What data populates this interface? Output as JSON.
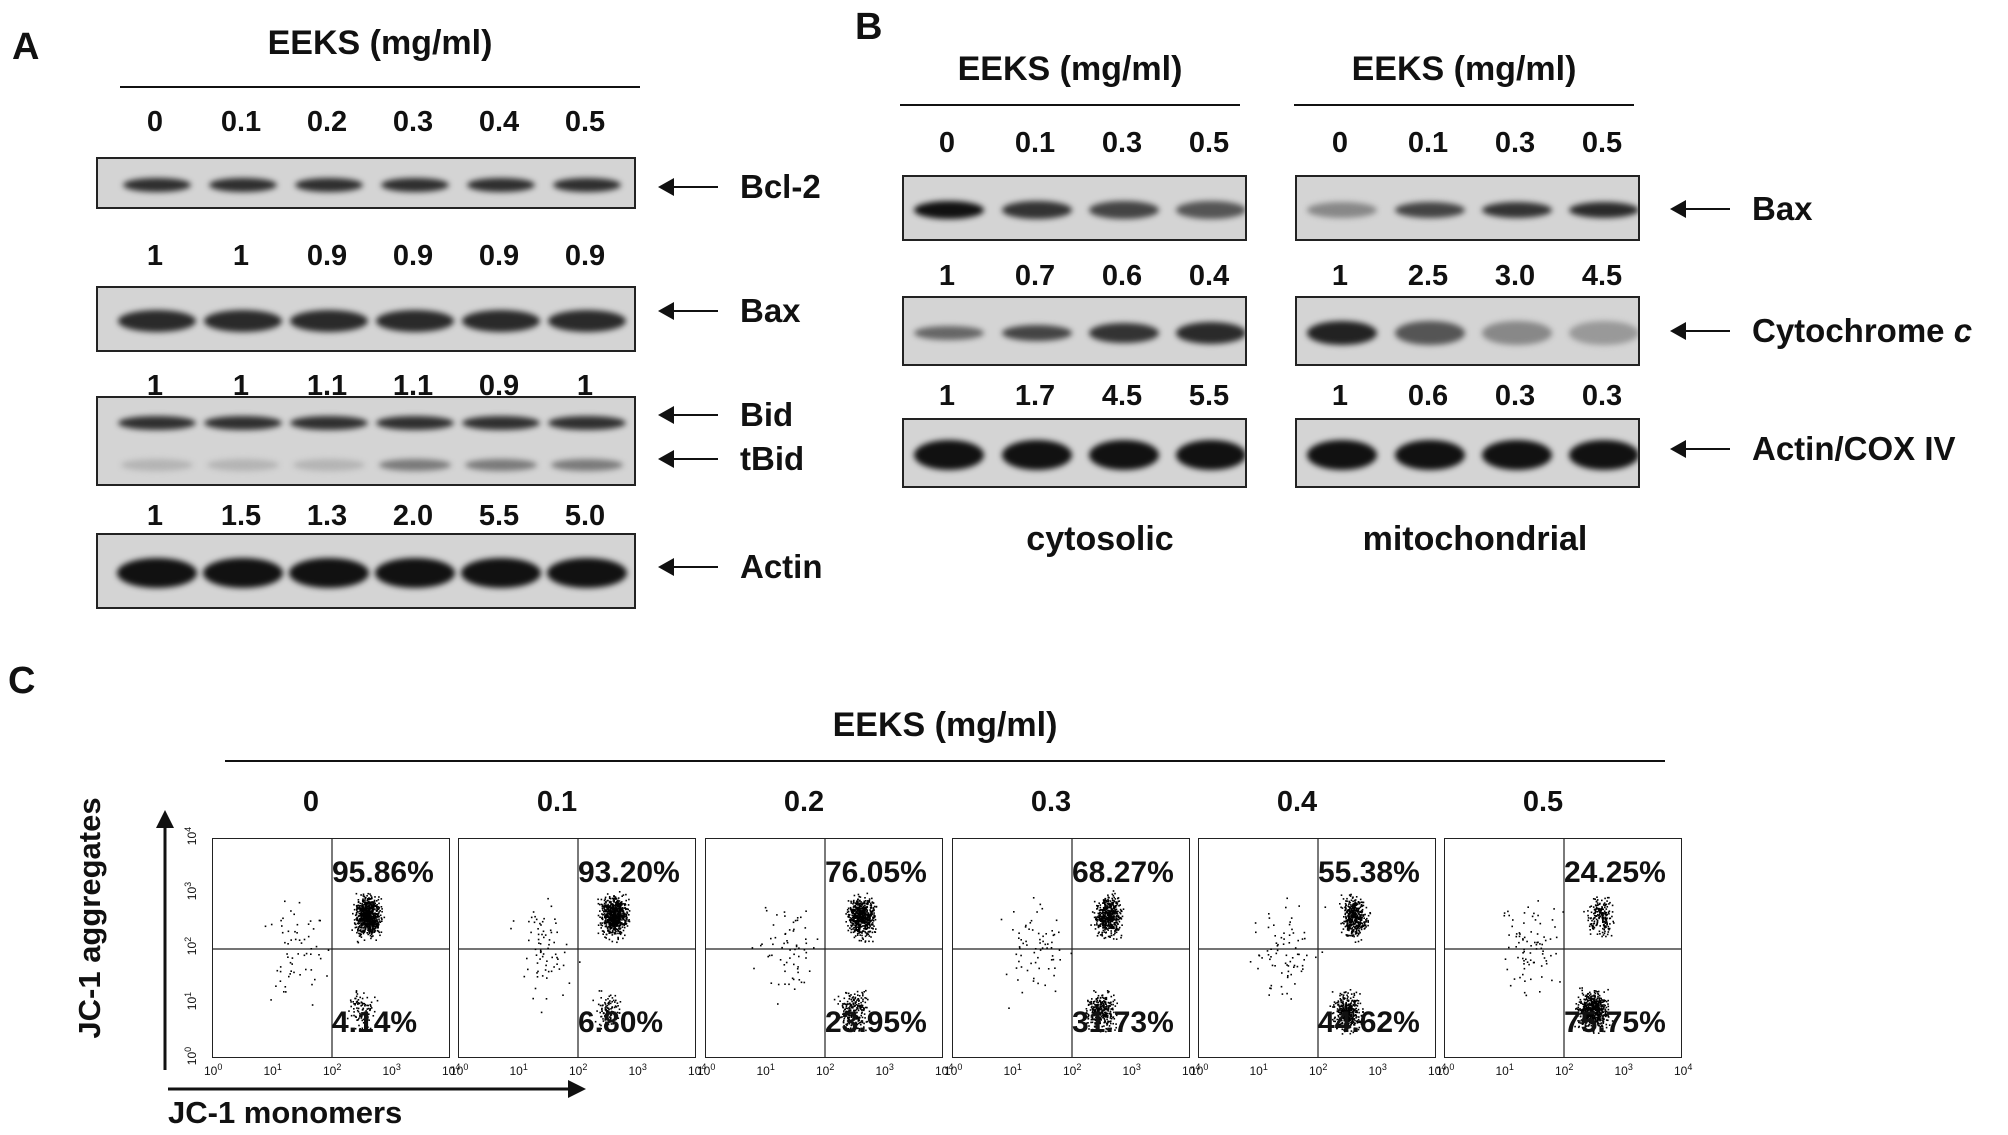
{
  "panels": {
    "a": "A",
    "b": "B",
    "c": "C"
  },
  "panel_a": {
    "header": "EEKS (mg/ml)",
    "doses": [
      "0",
      "0.1",
      "0.2",
      "0.3",
      "0.4",
      "0.5"
    ],
    "blots": [
      {
        "labels": [
          "Bcl-2"
        ],
        "quant": [
          "1",
          "1",
          "0.9",
          "0.9",
          "0.9",
          "0.9"
        ]
      },
      {
        "labels": [
          "Bax"
        ],
        "quant": [
          "1",
          "1",
          "1.1",
          "1.1",
          "0.9",
          "1"
        ]
      },
      {
        "labels": [
          "Bid",
          "tBid"
        ],
        "quant": [
          "1",
          "1.5",
          "1.3",
          "2.0",
          "5.5",
          "5.0"
        ]
      },
      {
        "labels": [
          "Actin"
        ],
        "quant": []
      }
    ]
  },
  "panel_b": {
    "left": {
      "header": "EEKS (mg/ml)",
      "doses": [
        "0",
        "0.1",
        "0.3",
        "0.5"
      ],
      "quant": [
        [
          "1",
          "0.7",
          "0.6",
          "0.4"
        ],
        [
          "1",
          "1.7",
          "4.5",
          "5.5"
        ]
      ],
      "footer": "cytosolic"
    },
    "right": {
      "header": "EEKS (mg/ml)",
      "doses": [
        "0",
        "0.1",
        "0.3",
        "0.5"
      ],
      "quant": [
        [
          "1",
          "2.5",
          "3.0",
          "4.5"
        ],
        [
          "1",
          "0.6",
          "0.3",
          "0.3"
        ]
      ],
      "footer": "mitochondrial"
    },
    "labels": {
      "bax": "Bax",
      "cyto_main": "Cytochrome ",
      "cyto_italic": "c",
      "actin": "Actin/COX IV"
    }
  },
  "panel_c": {
    "header": "EEKS (mg/ml)",
    "doses": [
      "0",
      "0.1",
      "0.2",
      "0.3",
      "0.4",
      "0.5"
    ],
    "upper_pct": [
      "95.86%",
      "93.20%",
      "76.05%",
      "68.27%",
      "55.38%",
      "24.25%"
    ],
    "lower_pct": [
      "4.14%",
      "6.80%",
      "23.95%",
      "31.73%",
      "44.62%",
      "75.75%"
    ],
    "y_axis_label": "JC-1 aggregates",
    "x_axis_label": "JC-1 monomers",
    "tick_labels": [
      "10",
      "10",
      "10",
      "10",
      "10"
    ],
    "tick_exponents": [
      "0",
      "1",
      "2",
      "3",
      "4"
    ],
    "upper_fraction": [
      0.9586,
      0.932,
      0.7605,
      0.6827,
      0.5538,
      0.2425
    ]
  }
}
